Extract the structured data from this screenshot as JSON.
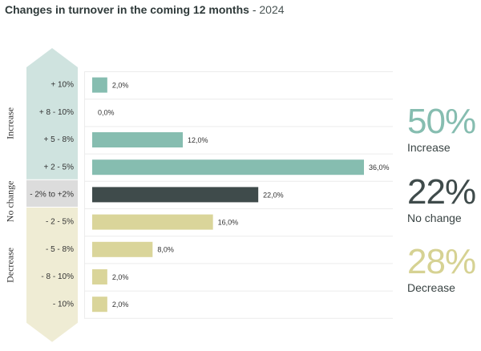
{
  "title": {
    "main": "Changes in turnover in the coming 12 months",
    "separator": " - ",
    "year": "2024"
  },
  "colors": {
    "increase": "#86bdb0",
    "increase_band": "#cfe3df",
    "no_change": "#3f4b4b",
    "no_change_band": "#dcdcdc",
    "decrease": "#dad59a",
    "decrease_band": "#efecd4",
    "text": "#333333",
    "grid": "#ececec"
  },
  "chart_data": {
    "type": "bar",
    "orientation": "horizontal",
    "title": "Changes in turnover in the coming 12 months - 2024",
    "categories": [
      "+ 10%",
      "+ 8 - 10%",
      "+ 5 - 8%",
      "+ 2 - 5%",
      "- 2% to +2%",
      "- 2 - 5%",
      "- 5 - 8%",
      "- 8 - 10%",
      "- 10%"
    ],
    "values": [
      2.0,
      0.0,
      12.0,
      36.0,
      22.0,
      16.0,
      8.0,
      2.0,
      2.0
    ],
    "value_labels": [
      "2,0%",
      "0,0%",
      "12,0%",
      "36,0%",
      "22,0%",
      "16,0%",
      "8,0%",
      "2,0%",
      "2,0%"
    ],
    "groups": [
      "increase",
      "increase",
      "increase",
      "increase",
      "no_change",
      "decrease",
      "decrease",
      "decrease",
      "decrease"
    ],
    "group_labels": {
      "increase": "Increase",
      "no_change": "No change",
      "decrease": "Decrease"
    },
    "xlim": [
      0,
      36
    ],
    "unit": "%"
  },
  "summary": [
    {
      "pct": "50%",
      "label": "Increase",
      "color": "#86bdb0"
    },
    {
      "pct": "22%",
      "label": "No change",
      "color": "#3f4b4b"
    },
    {
      "pct": "28%",
      "label": "Decrease",
      "color": "#d6d293"
    }
  ]
}
